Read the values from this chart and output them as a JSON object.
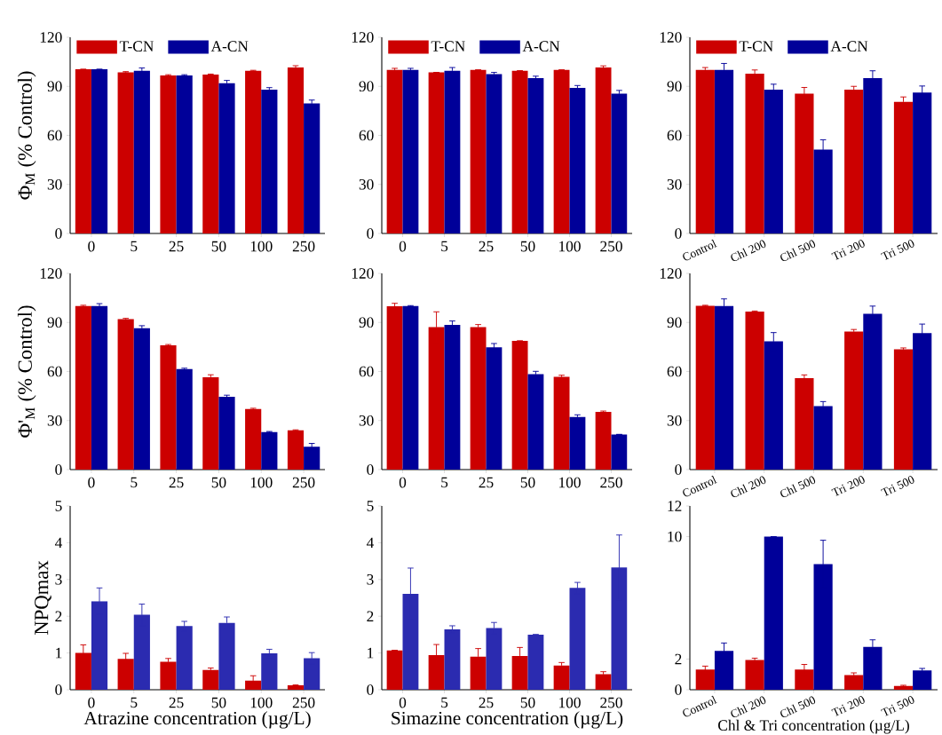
{
  "chart_data": [
    {
      "type": "bar",
      "ylabel": "Φ$_{M}$ (% Control)",
      "categories": [
        "0",
        "5",
        "25",
        "50",
        "100",
        "250"
      ],
      "ylim": [
        0,
        120
      ],
      "yticks": [
        0,
        30,
        60,
        90,
        120
      ],
      "legend": "top left",
      "series": [
        {
          "name": "T-CN",
          "color": "#cc0000",
          "values": [
            100.4,
            98.6,
            96.6,
            97.2,
            99.5,
            101.5
          ],
          "errors": [
            null,
            0.4,
            0.5,
            0.3,
            0.3,
            1.1
          ]
        },
        {
          "name": "A-CN",
          "color": "#000099",
          "values": [
            100.4,
            99.5,
            96.6,
            91.9,
            88,
            79.6
          ],
          "errors": [
            null,
            1.7,
            0.5,
            1.7,
            1.2,
            2
          ]
        }
      ]
    },
    {
      "type": "bar",
      "categories": [
        "0",
        "5",
        "25",
        "50",
        "100",
        "250"
      ],
      "ylim": [
        0,
        120
      ],
      "yticks": [
        0,
        30,
        60,
        90,
        120
      ],
      "legend": "top left",
      "series": [
        {
          "name": "T-CN",
          "color": "#cc0000",
          "values": [
            100,
            98.5,
            100,
            99.5,
            100,
            101.5
          ],
          "errors": [
            1,
            null,
            null,
            null,
            null,
            1
          ]
        },
        {
          "name": "A-CN",
          "color": "#000099",
          "values": [
            100,
            99.5,
            97.5,
            95,
            89,
            85.5
          ],
          "errors": [
            1,
            2,
            1,
            1.2,
            1.5,
            2
          ]
        }
      ]
    },
    {
      "type": "bar",
      "categories": [
        "Control",
        "Chl 200",
        "Chl 500",
        "Tri 200",
        "Tri 500"
      ],
      "ylim": [
        0,
        120
      ],
      "yticks": [
        0,
        30,
        60,
        90,
        120
      ],
      "legend": "top left",
      "series": [
        {
          "name": "T-CN",
          "color": "#cc0000",
          "values": [
            100,
            97.8,
            85.5,
            88,
            80.5
          ],
          "errors": [
            1.5,
            2.2,
            3.8,
            2,
            3
          ]
        },
        {
          "name": "A-CN",
          "color": "#000099",
          "values": [
            100,
            88,
            51.3,
            95,
            86.2
          ],
          "errors": [
            4,
            3.3,
            6,
            4.5,
            4
          ]
        }
      ]
    },
    {
      "type": "bar",
      "ylabel": "Φ'$_{M}$ (% Control)",
      "categories": [
        "0",
        "5",
        "25",
        "50",
        "100",
        "250"
      ],
      "ylim": [
        0,
        120
      ],
      "yticks": [
        0,
        30,
        60,
        90,
        120
      ],
      "series": [
        {
          "color": "#cc0000",
          "values": [
            100,
            92,
            76,
            56.5,
            37,
            24
          ],
          "errors": [
            0.5,
            0.5,
            0.5,
            1.5,
            0.5,
            0.3
          ]
        },
        {
          "color": "#000099",
          "values": [
            100,
            86.5,
            61.5,
            44.5,
            23,
            14
          ],
          "errors": [
            1.5,
            1.5,
            0.5,
            1,
            0.3,
            2
          ]
        }
      ]
    },
    {
      "type": "bar",
      "categories": [
        "0",
        "5",
        "25",
        "50",
        "100",
        "250"
      ],
      "ylim": [
        0,
        120
      ],
      "yticks": [
        0,
        30,
        60,
        90,
        120
      ],
      "series": [
        {
          "color": "#cc0000",
          "values": [
            99.9,
            87.2,
            87.2,
            78.7,
            56.8,
            35.3
          ],
          "errors": [
            1.8,
            9.3,
            1.5,
            null,
            0.9,
            0.5
          ]
        },
        {
          "color": "#000099",
          "values": [
            100,
            88.5,
            74.8,
            58.3,
            32.2,
            21.5
          ],
          "errors": [
            0.3,
            2.4,
            2.3,
            1.8,
            1.3,
            null
          ]
        }
      ]
    },
    {
      "type": "bar",
      "categories": [
        "Control",
        "Chl 200",
        "Chl 500",
        "Tri 200",
        "Tri 500"
      ],
      "ylim": [
        0,
        120
      ],
      "yticks": [
        0,
        30,
        60,
        90,
        120
      ],
      "series": [
        {
          "color": "#cc0000",
          "values": [
            100.2,
            96.7,
            55.9,
            84.4,
            73.5
          ],
          "errors": [
            0.3,
            0.3,
            2,
            1.3,
            0.9
          ]
        },
        {
          "color": "#000099",
          "values": [
            100,
            78.4,
            38.8,
            95.3,
            83.5
          ],
          "errors": [
            4.4,
            5.4,
            2.8,
            4.7,
            5.5
          ]
        }
      ]
    },
    {
      "type": "bar",
      "ylabel": "NPQmax",
      "xlabel": "Atrazine concentration (µg/L)",
      "categories": [
        "0",
        "5",
        "25",
        "50",
        "100",
        "250"
      ],
      "ylim": [
        0,
        5
      ],
      "yticks": [
        0,
        1,
        2,
        3,
        4,
        5
      ],
      "series": [
        {
          "color": "#cc0000",
          "values": [
            1.0,
            0.84,
            0.76,
            0.54,
            0.25,
            0.12
          ],
          "errors": [
            0.22,
            0.15,
            0.09,
            0.05,
            0.13,
            0.01
          ]
        },
        {
          "color": "#2b2bb0",
          "values": [
            2.41,
            2.04,
            1.73,
            1.82,
            0.99,
            0.86
          ],
          "errors": [
            0.36,
            0.29,
            0.13,
            0.16,
            0.11,
            0.15
          ]
        }
      ]
    },
    {
      "type": "bar",
      "xlabel": "Simazine concentration (µg/L)",
      "categories": [
        "0",
        "5",
        "25",
        "50",
        "100",
        "250"
      ],
      "ylim": [
        0,
        5
      ],
      "yticks": [
        0,
        1,
        2,
        3,
        4,
        5
      ],
      "series": [
        {
          "color": "#cc0000",
          "values": [
            1.07,
            0.94,
            0.9,
            0.92,
            0.66,
            0.42
          ],
          "errors": [
            null,
            0.29,
            0.22,
            0.23,
            0.08,
            0.07
          ]
        },
        {
          "color": "#2b2bb0",
          "values": [
            2.61,
            1.64,
            1.68,
            1.5,
            2.77,
            3.33
          ],
          "errors": [
            0.7,
            0.1,
            0.15,
            null,
            0.15,
            0.88
          ]
        }
      ]
    },
    {
      "type": "bar",
      "xlabel": "Chl & Tri concentration (µg/L)",
      "categories": [
        "Control",
        "Chl 200",
        "Chl 500",
        "Tri 200",
        "Tri 500"
      ],
      "ylim": [
        0,
        12
      ],
      "yticks": [
        0,
        2,
        10,
        12
      ],
      "series": [
        {
          "color": "#cc0000",
          "values": [
            1.32,
            1.94,
            1.32,
            0.95,
            0.25
          ],
          "errors": [
            0.22,
            0.12,
            0.33,
            0.15,
            0.04
          ]
        },
        {
          "color": "#000099",
          "values": [
            2.54,
            10.0,
            8.2,
            2.8,
            1.26
          ],
          "errors": [
            0.51,
            null,
            1.56,
            0.46,
            0.13
          ]
        }
      ]
    }
  ]
}
